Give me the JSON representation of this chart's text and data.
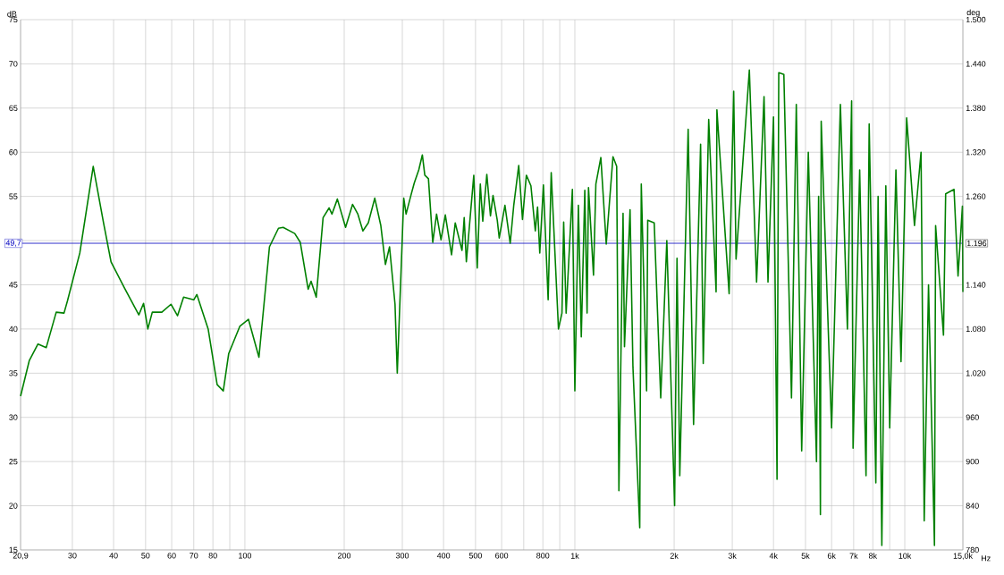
{
  "chart_data": {
    "type": "line",
    "xlabel": "Hz",
    "ylabel": "dB",
    "y2label": "deg",
    "log": "x",
    "grid": true,
    "line_style": "solid",
    "xlim": [
      20.9,
      15000
    ],
    "ylim": [
      15,
      75
    ],
    "y2lim": [
      780,
      1500
    ],
    "xticks": [
      {
        "value": 20.9,
        "label": "20,9"
      },
      30,
      40,
      50,
      60,
      70,
      80,
      {
        "value": 90,
        "label": null
      },
      100,
      200,
      300,
      400,
      500,
      600,
      {
        "value": 700,
        "label": null
      },
      800,
      {
        "value": 900,
        "label": null
      },
      {
        "value": 1000,
        "label": "1k"
      },
      {
        "value": 2000,
        "label": "2k"
      },
      {
        "value": 3000,
        "label": "3k"
      },
      {
        "value": 4000,
        "label": "4k"
      },
      {
        "value": 5000,
        "label": "5k"
      },
      {
        "value": 6000,
        "label": "6k"
      },
      {
        "value": 7000,
        "label": "7k"
      },
      {
        "value": 8000,
        "label": "8k"
      },
      {
        "value": 9000,
        "label": null
      },
      {
        "value": 10000,
        "label": "10k"
      },
      {
        "value": 15000,
        "label": "15,0k"
      }
    ],
    "yticks": [
      15,
      20,
      25,
      30,
      35,
      40,
      45,
      {
        "value": 50,
        "label": null
      },
      55,
      60,
      65,
      70,
      75
    ],
    "y2ticks": [
      780,
      840,
      900,
      960,
      {
        "value": 1020,
        "label": "1.020"
      },
      {
        "value": 1080,
        "label": "1.080"
      },
      {
        "value": 1140,
        "label": "1.140"
      },
      {
        "value": 1200,
        "label": null
      },
      {
        "value": 1260,
        "label": "1.260"
      },
      {
        "value": 1320,
        "label": "1.320"
      },
      {
        "value": 1380,
        "label": "1.380"
      },
      {
        "value": 1440,
        "label": "1.440"
      },
      {
        "value": 1500,
        "label": "1.500"
      }
    ],
    "ref_lines": [
      {
        "axis": "y",
        "value": 49.7,
        "label": "49,7",
        "color": "#0000c0"
      }
    ],
    "annotations": [
      {
        "text": "1.196",
        "x": 15000,
        "y": 49.7
      }
    ],
    "series": [
      {
        "color": "#008000",
        "x": [
          20.9,
          22.2,
          23.6,
          25.0,
          26.8,
          28.3,
          29.0,
          31.6,
          34.7,
          37.3,
          39.3,
          43.2,
          47.7,
          49.3,
          50.8,
          52.4,
          56.0,
          59.7,
          62.5,
          65.2,
          70.0,
          71.5,
          77.4,
          82.4,
          86.0,
          89.3,
          96.5,
          102.5,
          110.3,
          118.7,
          126.4,
          130.6,
          141.6,
          147.2,
          155.5,
          158.7,
          164.5,
          172.6,
          180.0,
          183.6,
          190.7,
          201.9,
          212,
          220,
          227.8,
          236.6,
          247.5,
          258.2,
          266.6,
          274.4,
          285.1,
          289.6,
          303,
          308,
          319,
          326,
          336.5,
          345,
          351,
          360,
          371,
          381,
          393,
          405,
          423,
          434,
          455,
          462,
          469,
          494,
          506,
          517,
          526,
          541,
          555,
          565,
          582,
          590,
          614,
          637,
          653,
          676,
          694,
          713,
          736,
          759,
          771,
          783,
          803,
          830,
          848,
          892,
          914,
          925,
          941,
          983,
          1000,
          1025,
          1046,
          1072,
          1089,
          1100,
          1139,
          1158,
          1199,
          1245,
          1305,
          1339,
          1360,
          1400,
          1414,
          1470,
          1500,
          1573,
          1590,
          1650,
          1663,
          1740,
          1821,
          1900,
          2006,
          2040,
          2080,
          2205,
          2290,
          2405,
          2450,
          2545,
          2680,
          2695,
          2935,
          3030,
          3080,
          3380,
          3555,
          3745,
          3850,
          4000,
          4100,
          4150,
          4300,
          4535,
          4690,
          4870,
          5100,
          5400,
          5480,
          5550,
          5580,
          6000,
          6380,
          6700,
          6900,
          6970,
          7300,
          7630,
          7800,
          8170,
          8300,
          8520,
          8760,
          9000,
          9400,
          9740,
          10130,
          10700,
          11200,
          11450,
          11800,
          12300,
          12400,
          13100,
          13300,
          14100,
          14500,
          14950,
          15000
        ],
        "values": [
          32.4,
          36.4,
          38.3,
          37.9,
          41.9,
          41.8,
          43.2,
          48.6,
          58.4,
          52.0,
          47.6,
          44.6,
          41.6,
          42.9,
          40.0,
          41.9,
          41.9,
          42.8,
          41.5,
          43.6,
          43.3,
          43.9,
          40.0,
          33.7,
          33.0,
          37.2,
          40.3,
          41.1,
          36.8,
          49.3,
          51.4,
          51.5,
          50.8,
          49.8,
          44.5,
          45.4,
          43.6,
          52.6,
          53.7,
          53.0,
          54.7,
          51.5,
          54.1,
          53.0,
          51.1,
          52.0,
          54.8,
          51.7,
          47.3,
          49.3,
          42.8,
          35.0,
          54.8,
          53.0,
          55.2,
          56.5,
          58.0,
          59.7,
          57.4,
          57.0,
          49.8,
          53.0,
          50.1,
          52.9,
          48.4,
          52.0,
          48.9,
          52.6,
          47.6,
          57.4,
          46.9,
          56.4,
          52.2,
          57.5,
          52.8,
          55.1,
          52.3,
          50.3,
          54.0,
          49.7,
          54.0,
          58.5,
          52.4,
          57.4,
          56.2,
          51.1,
          53.8,
          48.6,
          56.3,
          43.3,
          57.7,
          40.0,
          41.8,
          52.1,
          41.8,
          55.8,
          33.0,
          54.0,
          39.1,
          55.7,
          41.8,
          56.0,
          46.1,
          56.4,
          59.4,
          49.6,
          59.5,
          58.4,
          21.7,
          53.1,
          38.0,
          53.5,
          35.7,
          17.5,
          56.4,
          33.0,
          52.3,
          52.0,
          32.2,
          50.0,
          20.0,
          48.0,
          23.4,
          62.6,
          29.2,
          60.9,
          36.1,
          63.7,
          44.2,
          64.8,
          44.0,
          66.9,
          47.9,
          69.3,
          45.3,
          66.3,
          45.3,
          64.0,
          23.0,
          69.0,
          68.8,
          32.2,
          65.4,
          26.2,
          60.0,
          25.0,
          55.0,
          19.0,
          63.5,
          28.8,
          65.4,
          40.0,
          65.8,
          26.5,
          58.0,
          23.4,
          63.2,
          22.6,
          55.0,
          15.5,
          56.2,
          28.8,
          58.0,
          36.3,
          63.9,
          51.7,
          60.0,
          18.3,
          45.0,
          15.5,
          51.7,
          39.3,
          55.3,
          55.8,
          46.0,
          53.9,
          44.2
        ]
      }
    ]
  }
}
